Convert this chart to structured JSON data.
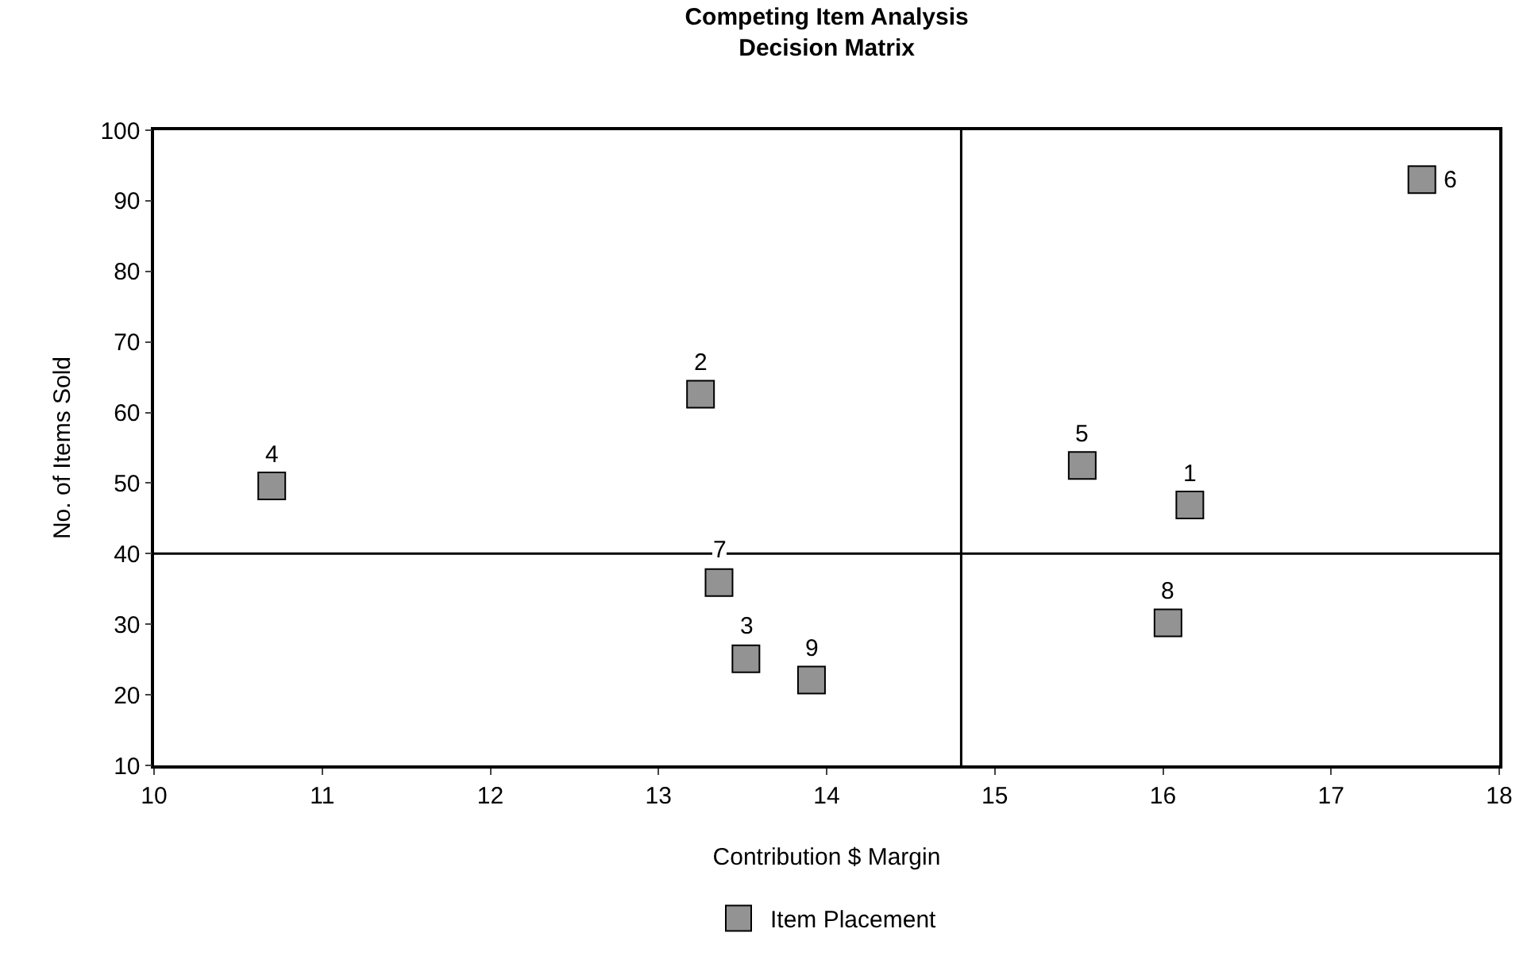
{
  "chart_data": {
    "type": "scatter",
    "title": [
      "Competing Item Analysis",
      "Decision Matrix"
    ],
    "xlabel": "Contribution $ Margin",
    "ylabel": "No. of Items Sold",
    "x": [
      16.16,
      13.25,
      13.52,
      10.7,
      15.52,
      17.54,
      13.36,
      16.03,
      13.91
    ],
    "series": [
      {
        "name": "Item Placement",
        "color": "#939393",
        "values": [
          46.9,
          62.6,
          25.1,
          49.6,
          52.5,
          93,
          35.9,
          30.2,
          22.1
        ]
      }
    ],
    "annotations": [
      {
        "text": "1",
        "x": 16.16,
        "y": 46.9
      },
      {
        "text": "2",
        "x": 13.25,
        "y": 62.6
      },
      {
        "text": "3",
        "x": 13.52,
        "y": 25.1
      },
      {
        "text": "4",
        "x": 10.7,
        "y": 49.6
      },
      {
        "text": "5",
        "x": 15.52,
        "y": 52.5
      },
      {
        "text": "6",
        "x": 17.54,
        "y": 93
      },
      {
        "text": "7",
        "x": 13.36,
        "y": 35.9
      },
      {
        "text": "8",
        "x": 16.03,
        "y": 30.2
      },
      {
        "text": "9",
        "x": 13.91,
        "y": 22.1
      }
    ],
    "ref_lines": [
      {
        "axis": "x",
        "value": 14.8,
        "color": "#000000"
      },
      {
        "axis": "y",
        "value": 40,
        "color": "#000000"
      }
    ],
    "xlim": [
      10,
      18
    ],
    "xticks": [
      10,
      11,
      12,
      13,
      14,
      15,
      16,
      17,
      18
    ],
    "ylim": [
      10,
      100
    ],
    "yticks": [
      10,
      20,
      30,
      40,
      50,
      60,
      70,
      80,
      90,
      100
    ],
    "legend": "bottom",
    "marker": "square"
  }
}
